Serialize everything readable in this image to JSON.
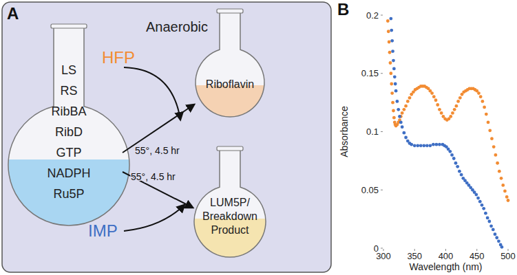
{
  "panel_labels": [
    "A",
    "B"
  ],
  "diagram": {
    "condition": "Anaerobic",
    "reagents": [
      "LS",
      "RS",
      "RibBA",
      "RibD",
      "GTP",
      "NADPH",
      "Ru5P"
    ],
    "reaction_labels": [
      "55°, 4.5 hr",
      "55°, 4.5 hr"
    ],
    "inputs": [
      {
        "label": "HFP",
        "color": "#f28c33"
      },
      {
        "label": "IMP",
        "color": "#3f6fc4"
      }
    ],
    "products": [
      [
        "Riboflavin"
      ],
      [
        "LUM5P/",
        "Breakdown",
        "Product"
      ]
    ]
  },
  "chart_data": {
    "type": "scatter",
    "x_label": "Wavelength (nm)",
    "y_label": "Absorbance",
    "xlim": [
      300,
      500
    ],
    "xticks": [
      300,
      350,
      400,
      450,
      500
    ],
    "ylim": [
      0,
      0.2
    ],
    "yticks": [
      0,
      0.05,
      0.1,
      0.15,
      0.2
    ],
    "grid": false,
    "marker": "circle",
    "series": [
      {
        "color": "#f28c33",
        "x": [
          307,
          308,
          309,
          310,
          311,
          312,
          313,
          314,
          315,
          316,
          317,
          318,
          319,
          320,
          322,
          324,
          326,
          328,
          330,
          333,
          336,
          339,
          342,
          345,
          348,
          351,
          354,
          357,
          360,
          363,
          366,
          369,
          372,
          375,
          378,
          381,
          384,
          387,
          390,
          393,
          396,
          399,
          402,
          405,
          408,
          411,
          414,
          417,
          420,
          423,
          426,
          429,
          432,
          435,
          438,
          441,
          444,
          447,
          450,
          453,
          456,
          459,
          462,
          465,
          468,
          471,
          474,
          477,
          480,
          483,
          486,
          489,
          492,
          495,
          498,
          500
        ],
        "values": [
          0.195,
          0.186,
          0.177,
          0.168,
          0.159,
          0.15,
          0.141,
          0.133,
          0.125,
          0.118,
          0.112,
          0.108,
          0.106,
          0.105,
          0.106,
          0.108,
          0.11,
          0.113,
          0.116,
          0.119,
          0.122,
          0.126,
          0.129,
          0.132,
          0.134,
          0.136,
          0.137,
          0.138,
          0.139,
          0.139,
          0.139,
          0.138,
          0.137,
          0.135,
          0.133,
          0.13,
          0.127,
          0.123,
          0.119,
          0.116,
          0.113,
          0.111,
          0.11,
          0.111,
          0.113,
          0.116,
          0.119,
          0.122,
          0.126,
          0.129,
          0.132,
          0.134,
          0.135,
          0.136,
          0.137,
          0.137,
          0.137,
          0.136,
          0.135,
          0.133,
          0.13,
          0.126,
          0.121,
          0.115,
          0.108,
          0.101,
          0.094,
          0.087,
          0.08,
          0.073,
          0.066,
          0.06,
          0.054,
          0.049,
          0.044,
          0.041
        ]
      },
      {
        "color": "#3f6fc4",
        "x": [
          312,
          313,
          314,
          315,
          316,
          317,
          318,
          319,
          320,
          322,
          324,
          326,
          328,
          330,
          333,
          336,
          339,
          342,
          345,
          350,
          355,
          360,
          365,
          370,
          375,
          380,
          385,
          390,
          395,
          398,
          401,
          404,
          407,
          410,
          413,
          416,
          419,
          422,
          425,
          428,
          431,
          434,
          437,
          440,
          443,
          446,
          449,
          452,
          455,
          458,
          461,
          464,
          467,
          470,
          473,
          476,
          479,
          482,
          485,
          488,
          490
        ],
        "values": [
          0.197,
          0.187,
          0.178,
          0.169,
          0.161,
          0.154,
          0.147,
          0.141,
          0.135,
          0.126,
          0.119,
          0.113,
          0.108,
          0.104,
          0.099,
          0.095,
          0.092,
          0.09,
          0.089,
          0.088,
          0.088,
          0.088,
          0.088,
          0.088,
          0.088,
          0.089,
          0.089,
          0.089,
          0.089,
          0.088,
          0.087,
          0.085,
          0.083,
          0.08,
          0.077,
          0.073,
          0.07,
          0.066,
          0.063,
          0.06,
          0.058,
          0.056,
          0.054,
          0.052,
          0.05,
          0.048,
          0.046,
          0.043,
          0.04,
          0.037,
          0.034,
          0.03,
          0.026,
          0.023,
          0.019,
          0.016,
          0.012,
          0.009,
          0.006,
          0.003,
          0.001
        ]
      }
    ]
  }
}
